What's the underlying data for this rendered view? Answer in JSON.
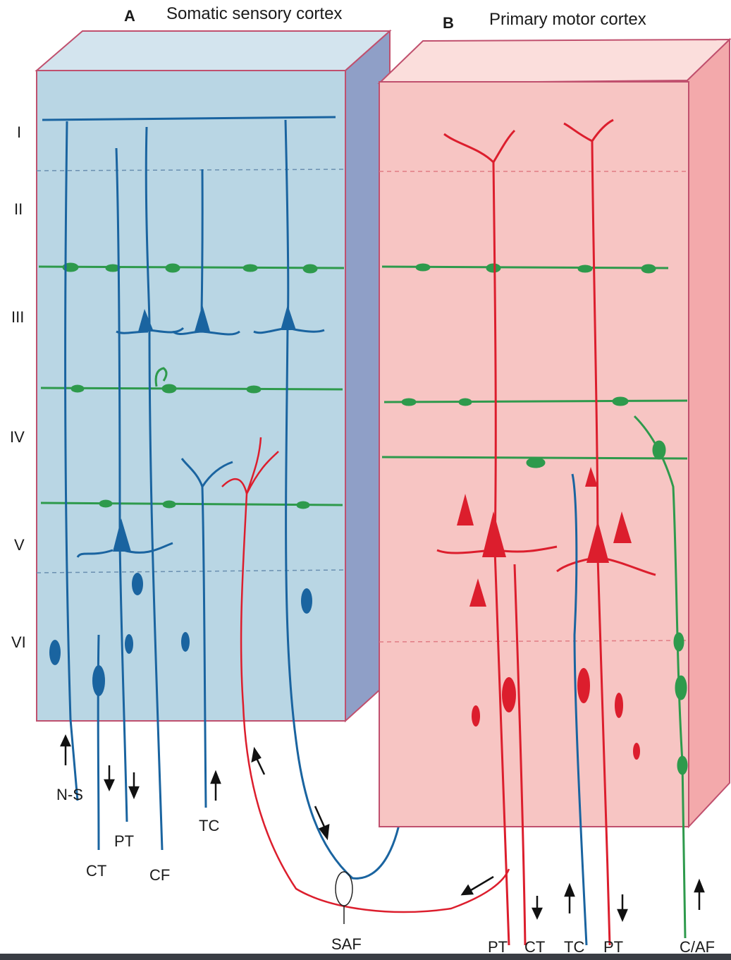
{
  "panels": {
    "a": {
      "letter": "A",
      "title": "Somatic sensory cortex"
    },
    "b": {
      "letter": "B",
      "title": "Primary motor cortex"
    }
  },
  "layers": [
    "I",
    "II",
    "III",
    "IV",
    "V",
    "VI"
  ],
  "fibers_a": {
    "ns": "N-S",
    "ct": "CT",
    "pt": "PT",
    "cf": "CF",
    "tc": "TC"
  },
  "saf": "SAF",
  "fibers_b": {
    "pt1": "PT",
    "ct": "CT",
    "tc": "TC",
    "pt2": "PT",
    "caf": "C/AF"
  },
  "colors": {
    "block_a_front": "#b9d6e4",
    "block_a_top": "#d3e4ee",
    "block_a_side": "#8f9fc7",
    "block_b_front": "#f7c5c3",
    "block_b_top": "#fbdedc",
    "block_b_side": "#f3a9ab",
    "border": "#c0506e",
    "blue": "#1a64a0",
    "red": "#dc1e2d",
    "green": "#2e9a4c"
  }
}
